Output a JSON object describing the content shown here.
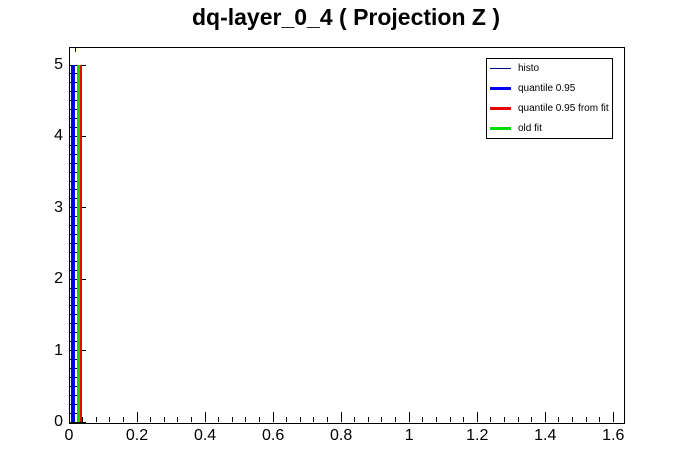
{
  "app": {
    "background": "#ffffff"
  },
  "chart_data": {
    "type": "line",
    "title": "dq-layer_0_4 ( Projection Z )",
    "x_axis": {
      "range": [
        0,
        1.63
      ],
      "major_tick_values": [
        0,
        0.2,
        0.4,
        0.6,
        0.8,
        1,
        1.2,
        1.4,
        1.6
      ],
      "major_tick_labels": [
        "0",
        "0.2",
        "0.4",
        "0.6",
        "0.8",
        "1",
        "1.2",
        "1.4",
        "1.6"
      ],
      "minor_tick_step": 0.04,
      "grid": false
    },
    "y_axis": {
      "range": [
        0,
        5.25
      ],
      "major_tick_values": [
        0,
        1,
        2,
        3,
        4,
        5
      ],
      "major_tick_labels": [
        "0",
        "1",
        "2",
        "3",
        "4",
        "5"
      ],
      "minor_tick_step": 0.125,
      "grid": false
    },
    "series": [
      {
        "name": "histo",
        "type": "vline",
        "x": 0.02,
        "y_span": [
          5.18,
          5.25
        ],
        "color": "#000080",
        "line_width": 1
      },
      {
        "name": "quantile 0.95",
        "type": "vline",
        "x": 0.012,
        "y_span": [
          0,
          5
        ],
        "color": "#0000ee",
        "line_width": 4
      },
      {
        "name": "old fit",
        "type": "vline",
        "x": 0.028,
        "y_span": [
          0,
          5
        ],
        "color": "#00dd00",
        "line_width": 3
      },
      {
        "name": "quantile 0.95 from fit",
        "type": "vline",
        "x": 0.035,
        "y_span": [
          0,
          5
        ],
        "color": "#ee0000",
        "line_width": 2
      }
    ],
    "legend": {
      "position": "top-right",
      "entries": [
        {
          "label": "histo",
          "color": "#000080",
          "line_width": 1
        },
        {
          "label": "quantile 0.95",
          "color": "#0000ee",
          "line_width": 3
        },
        {
          "label": "quantile 0.95 from fit",
          "color": "#ee0000",
          "line_width": 3
        },
        {
          "label": "old fit",
          "color": "#00dd00",
          "line_width": 3
        }
      ]
    }
  }
}
